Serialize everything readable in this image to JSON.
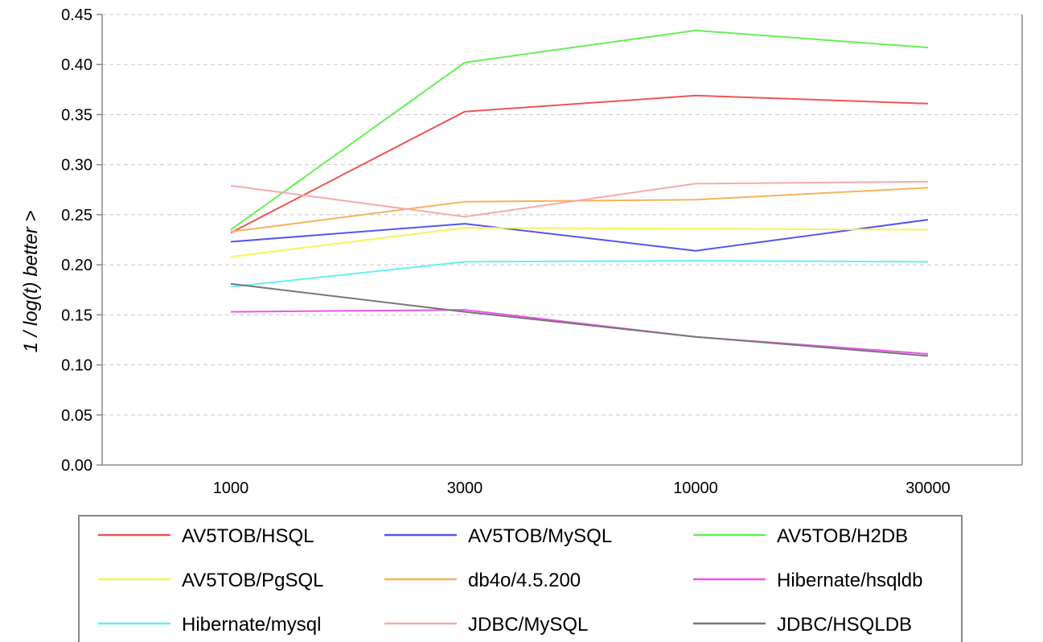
{
  "chart_data": {
    "type": "line",
    "categories": [
      "1000",
      "3000",
      "10000",
      "30000"
    ],
    "ylabel": "1  /  log(t)          better >",
    "ylim": [
      0,
      0.45
    ],
    "yticks": [
      "0.00",
      "0.05",
      "0.10",
      "0.15",
      "0.20",
      "0.25",
      "0.30",
      "0.35",
      "0.40",
      "0.45"
    ],
    "grid": true,
    "legend_position": "bottom",
    "series": [
      {
        "name": "AV5TOB/HSQL",
        "color": "#ee5555",
        "values": [
          0.232,
          0.353,
          0.369,
          0.361
        ]
      },
      {
        "name": "AV5TOB/MySQL",
        "color": "#5555ee",
        "values": [
          0.223,
          0.241,
          0.214,
          0.245
        ]
      },
      {
        "name": "AV5TOB/H2DB",
        "color": "#66ee55",
        "values": [
          0.235,
          0.402,
          0.434,
          0.417
        ]
      },
      {
        "name": "AV5TOB/PgSQL",
        "color": "#f5f555",
        "values": [
          0.208,
          0.237,
          0.236,
          0.235
        ]
      },
      {
        "name": "db4o/4.5.200",
        "color": "#f5b25a",
        "values": [
          0.233,
          0.263,
          0.265,
          0.277
        ]
      },
      {
        "name": "Hibernate/hsqldb",
        "color": "#ee55ee",
        "values": [
          0.153,
          0.155,
          0.128,
          0.111
        ]
      },
      {
        "name": "Hibernate/mysql",
        "color": "#66f0f0",
        "values": [
          0.178,
          0.203,
          0.204,
          0.203
        ]
      },
      {
        "name": "JDBC/MySQL",
        "color": "#f5aaaa",
        "values": [
          0.279,
          0.248,
          0.281,
          0.283
        ]
      },
      {
        "name": "JDBC/HSQLDB",
        "color": "#777777",
        "values": [
          0.181,
          0.153,
          0.128,
          0.109
        ]
      }
    ]
  }
}
